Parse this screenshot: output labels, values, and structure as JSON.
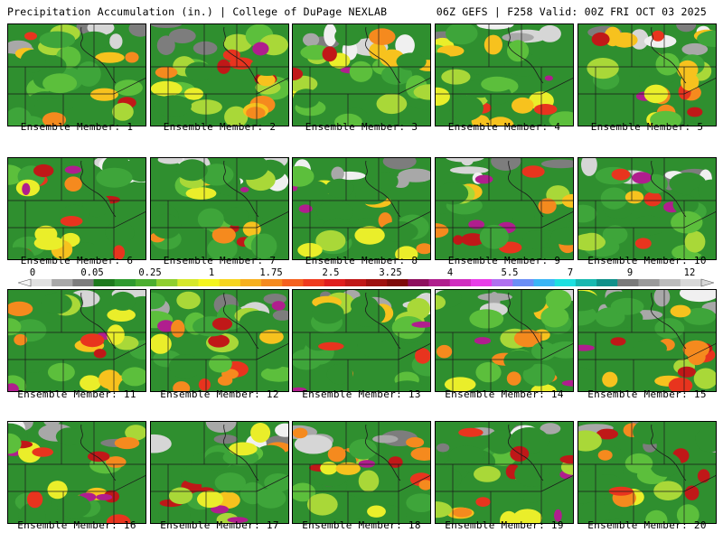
{
  "header": {
    "left_title": "Precipitation Accumulation (in.) | College of DuPage NEXLAB",
    "right_title": "06Z GEFS | F258 Valid: 00Z FRI OCT 03 2025"
  },
  "members": [
    {
      "label": "Ensemble Member: 1"
    },
    {
      "label": "Ensemble Member: 2"
    },
    {
      "label": "Ensemble Member: 3"
    },
    {
      "label": "Ensemble Member: 4"
    },
    {
      "label": "Ensemble Member: 5"
    },
    {
      "label": "Ensemble Member: 6"
    },
    {
      "label": "Ensemble Member: 7"
    },
    {
      "label": "Ensemble Member: 8"
    },
    {
      "label": "Ensemble Member: 9"
    },
    {
      "label": "Ensemble Member: 10"
    },
    {
      "label": "Ensemble Member: 11"
    },
    {
      "label": "Ensemble Member: 12"
    },
    {
      "label": "Ensemble Member: 13"
    },
    {
      "label": "Ensemble Member: 14"
    },
    {
      "label": "Ensemble Member: 15"
    },
    {
      "label": "Ensemble Member: 16"
    },
    {
      "label": "Ensemble Member: 17"
    },
    {
      "label": "Ensemble Member: 18"
    },
    {
      "label": "Ensemble Member: 19"
    },
    {
      "label": "Ensemble Member: 20"
    }
  ],
  "colorbar": {
    "tick_labels": [
      "0",
      "0.05",
      "0.25",
      "1",
      "1.75",
      "2.5",
      "3.25",
      "4",
      "5.5",
      "7",
      "9",
      "12"
    ],
    "colors": [
      "#e0e0e0",
      "#a8a8a8",
      "#7d7d7d",
      "#1e7a1e",
      "#2f9a2f",
      "#4caf2f",
      "#8fcf2f",
      "#d6e82a",
      "#f5f51e",
      "#f7d51e",
      "#f7b01e",
      "#f58a1e",
      "#f5601e",
      "#ef3a1e",
      "#e01e1e",
      "#c01818",
      "#9e1010",
      "#7e0a0a",
      "#8e0e5e",
      "#b01e8e",
      "#d02ec0",
      "#e83ee8",
      "#b070f0",
      "#6b8ef5",
      "#3ab5f5",
      "#1ee0e0",
      "#18b8b0",
      "#10908a",
      "#7a7a7a",
      "#9a9a9a",
      "#bcbcbc",
      "#d8d8d8"
    ]
  }
}
